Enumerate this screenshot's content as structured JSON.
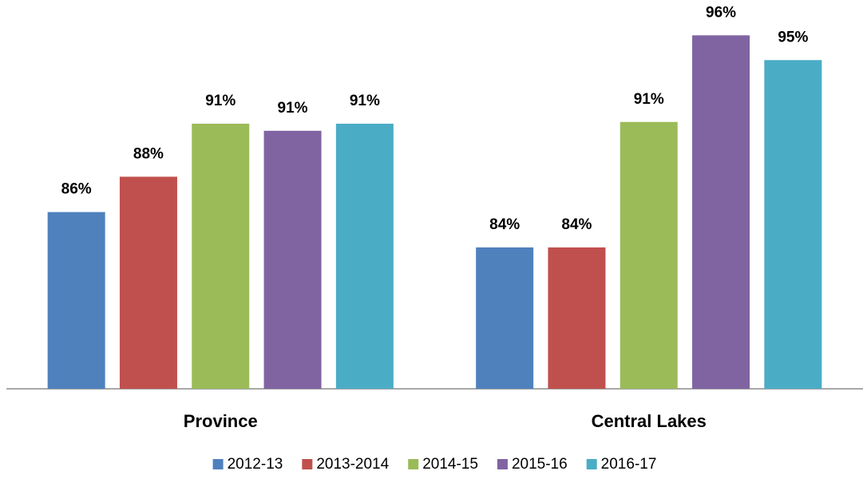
{
  "chart_data": {
    "type": "bar",
    "categories": [
      "Province",
      "Central Lakes"
    ],
    "series": [
      {
        "name": "2012-13",
        "color": "#4f81bd",
        "values": [
          86,
          84
        ],
        "value_labels": [
          "86%",
          "84%"
        ]
      },
      {
        "name": "2013-2014",
        "color": "#c0504d",
        "values": [
          88,
          84
        ],
        "value_labels": [
          "88%",
          "84%"
        ]
      },
      {
        "name": "2014-15",
        "color": "#9bbb59",
        "values": [
          91,
          91.1
        ],
        "value_labels": [
          "91%",
          "91%"
        ]
      },
      {
        "name": "2015-16",
        "color": "#8064a2",
        "values": [
          90.6,
          96
        ],
        "value_labels": [
          "91%",
          "96%"
        ]
      },
      {
        "name": "2016-17",
        "color": "#4bacc6",
        "values": [
          91,
          94.6
        ],
        "value_labels": [
          "91%",
          "95%"
        ]
      }
    ],
    "ylim": [
      76,
      98
    ],
    "legend": "bottom"
  }
}
